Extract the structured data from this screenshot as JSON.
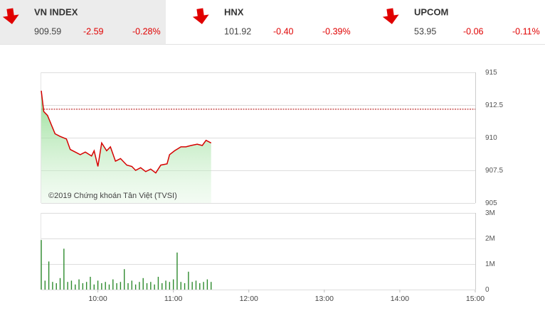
{
  "indices": [
    {
      "name": "VN INDEX",
      "value": "909.59",
      "change": "-2.59",
      "percent": "-0.28%"
    },
    {
      "name": "HNX",
      "value": "101.92",
      "change": "-0.40",
      "percent": "-0.39%"
    },
    {
      "name": "UPCOM",
      "value": "53.95",
      "change": "-0.06",
      "percent": "-0.11%"
    }
  ],
  "chart_data": [
    {
      "type": "line",
      "watermark": "©2019 Chứng khoán Tân Việt (TVSI)",
      "xlim": [
        555,
        900
      ],
      "ylim": [
        905,
        915
      ],
      "yticks": [
        915,
        912.5,
        910,
        907.5,
        905
      ],
      "grid": true,
      "reference": 912.18,
      "x": [
        555,
        557,
        560,
        563,
        566,
        570,
        575,
        578,
        582,
        586,
        590,
        595,
        597,
        600,
        603,
        607,
        610,
        614,
        618,
        623,
        627,
        630,
        634,
        638,
        642,
        646,
        650,
        655,
        657,
        661,
        666,
        670,
        674,
        679,
        683,
        686,
        690
      ],
      "series": [
        {
          "name": "VN INDEX",
          "color": "#d60000",
          "values": [
            913.6,
            912.0,
            911.7,
            911.0,
            910.3,
            910.1,
            909.9,
            909.1,
            908.9,
            908.7,
            908.9,
            908.6,
            909.0,
            907.8,
            909.6,
            909.0,
            909.3,
            908.2,
            908.4,
            907.9,
            907.8,
            907.5,
            907.7,
            907.4,
            907.6,
            907.3,
            907.9,
            908.0,
            908.7,
            909.0,
            909.3,
            909.3,
            909.4,
            909.5,
            909.4,
            909.8,
            909.6
          ]
        }
      ]
    },
    {
      "type": "bar",
      "xlim": [
        555,
        900
      ],
      "ylim": [
        0,
        3000000
      ],
      "yticks": [
        {
          "value": 0,
          "label": "0"
        },
        {
          "value": 1000000,
          "label": "1M"
        },
        {
          "value": 2000000,
          "label": "2M"
        },
        {
          "value": 3000000,
          "label": "3M"
        }
      ],
      "xticks": [
        {
          "value": 600,
          "label": "10:00"
        },
        {
          "value": 660,
          "label": "11:00"
        },
        {
          "value": 720,
          "label": "12:00"
        },
        {
          "value": 780,
          "label": "13:00"
        },
        {
          "value": 840,
          "label": "14:00"
        },
        {
          "value": 900,
          "label": "15:00"
        }
      ],
      "grid": true,
      "color": "#2e8b2e",
      "x": [
        555,
        558,
        561,
        564,
        567,
        570,
        573,
        576,
        579,
        582,
        585,
        588,
        591,
        594,
        597,
        600,
        603,
        606,
        609,
        612,
        615,
        618,
        621,
        624,
        627,
        630,
        633,
        636,
        639,
        642,
        645,
        648,
        651,
        654,
        657,
        660,
        663,
        666,
        669,
        672,
        675,
        678,
        681,
        684,
        687,
        690
      ],
      "values": [
        1940000,
        350000,
        1100000,
        300000,
        250000,
        450000,
        1600000,
        300000,
        350000,
        200000,
        400000,
        250000,
        300000,
        500000,
        200000,
        350000,
        250000,
        300000,
        200000,
        400000,
        250000,
        300000,
        800000,
        250000,
        350000,
        200000,
        300000,
        450000,
        250000,
        300000,
        200000,
        500000,
        250000,
        350000,
        300000,
        400000,
        1450000,
        300000,
        250000,
        700000,
        300000,
        350000,
        250000,
        300000,
        400000,
        300000
      ]
    }
  ]
}
